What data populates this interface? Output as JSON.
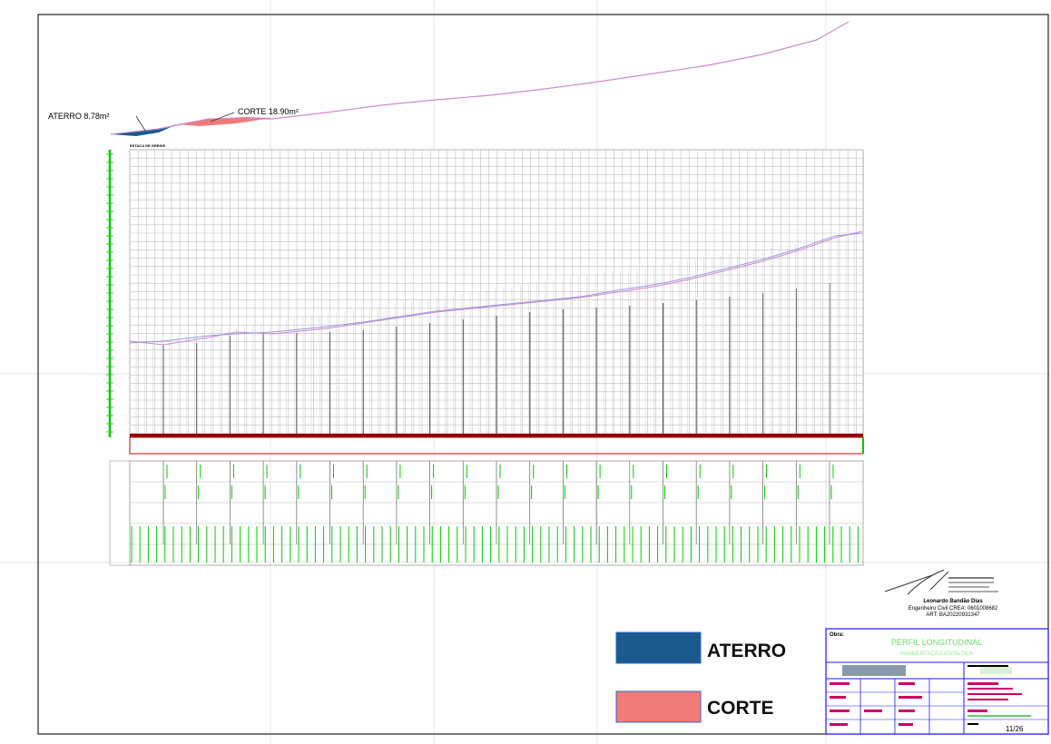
{
  "profile_labels": {
    "aterro": "ATERRO 8.78m²",
    "corte": "CORTE 18.90m²"
  },
  "grid_title": "ESTACA DE GREIDE",
  "legend": {
    "aterro_label": "ATERRO",
    "corte_label": "CORTE",
    "aterro_color": "#1a5a8c",
    "corte_color": "#f07a78"
  },
  "signature": {
    "name": "Leonardo Bandão Dias",
    "registry": "Engenheiro Civil CREA: 0601008682",
    "art": "ART: BA20220931347"
  },
  "title_block": {
    "header_label": "Obra:",
    "main_title": "PERFIL LONGITUDINAL",
    "subtitle": "PAVIMENTAÇÃO ASFÁLTICA",
    "sheet_number": "11/26"
  },
  "colors": {
    "grid": "#bdbdbd",
    "axis_green": "#00cc00",
    "profile_pink": "#cc88cc",
    "baseline_red": "#cc0000",
    "title_block_blue": "#1a1aff"
  }
}
